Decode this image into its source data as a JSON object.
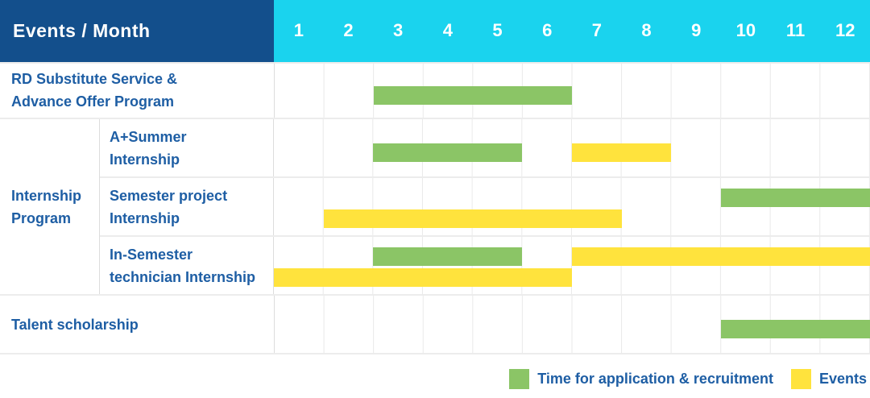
{
  "colors": {
    "header_bg": "#134F8C",
    "months_bg": "#1AD3EE",
    "green": "#8BC566",
    "yellow": "#FFE33D",
    "label_text": "#1E5EA4"
  },
  "header": {
    "title": "Events / Month",
    "months": [
      "1",
      "2",
      "3",
      "4",
      "5",
      "6",
      "7",
      "8",
      "9",
      "10",
      "11",
      "12"
    ]
  },
  "rows": [
    {
      "label": "RD Substitute Service &\nAdvance Offer Program",
      "bars": [
        {
          "color": "green",
          "start": 3,
          "end": 6,
          "lane": "center"
        }
      ]
    },
    {
      "group_label": "Internship\nProgram",
      "subrows": [
        {
          "label": "A+Summer\nInternship",
          "bars": [
            {
              "color": "green",
              "start": 3,
              "end": 5,
              "lane": "center"
            },
            {
              "color": "yellow",
              "start": 7,
              "end": 8,
              "lane": "center"
            }
          ]
        },
        {
          "label": "Semester project\nInternship",
          "bars": [
            {
              "color": "green",
              "start": 10,
              "end": 12,
              "lane": "top"
            },
            {
              "color": "yellow",
              "start": 2,
              "end": 7,
              "lane": "bottom"
            }
          ]
        },
        {
          "label": "In-Semester\ntechnician Internship",
          "bars": [
            {
              "color": "green",
              "start": 3,
              "end": 5,
              "lane": "top"
            },
            {
              "color": "yellow",
              "start": 7,
              "end": 12,
              "lane": "top"
            },
            {
              "color": "yellow",
              "start": 1,
              "end": 6,
              "lane": "bottom"
            }
          ]
        }
      ]
    },
    {
      "label": "Talent scholarship",
      "bars": [
        {
          "color": "green",
          "start": 10,
          "end": 12,
          "lane": "center"
        }
      ]
    }
  ],
  "legend": {
    "items": [
      {
        "color": "green",
        "label": "Time for application & recruitment"
      },
      {
        "color": "yellow",
        "label": "Events"
      }
    ]
  },
  "chart_data": {
    "type": "gantt",
    "title": "Events / Month",
    "x_unit": "month",
    "x_range": [
      1,
      12
    ],
    "legend_position": "bottom-right",
    "grid": true,
    "tasks": [
      {
        "group": null,
        "name": "RD Substitute Service & Advance Offer Program",
        "bars": [
          {
            "kind": "Time for application & recruitment",
            "start_month": 3,
            "end_month": 6
          }
        ]
      },
      {
        "group": "Internship Program",
        "name": "A+Summer Internship",
        "bars": [
          {
            "kind": "Time for application & recruitment",
            "start_month": 3,
            "end_month": 5
          },
          {
            "kind": "Events",
            "start_month": 7,
            "end_month": 8
          }
        ]
      },
      {
        "group": "Internship Program",
        "name": "Semester project Internship",
        "bars": [
          {
            "kind": "Time for application & recruitment",
            "start_month": 10,
            "end_month": 12
          },
          {
            "kind": "Events",
            "start_month": 2,
            "end_month": 7
          }
        ]
      },
      {
        "group": "Internship Program",
        "name": "In-Semester technician Internship",
        "bars": [
          {
            "kind": "Time for application & recruitment",
            "start_month": 3,
            "end_month": 5
          },
          {
            "kind": "Events",
            "start_month": 7,
            "end_month": 12
          },
          {
            "kind": "Events",
            "start_month": 1,
            "end_month": 6
          }
        ]
      },
      {
        "group": null,
        "name": "Talent scholarship",
        "bars": [
          {
            "kind": "Time for application & recruitment",
            "start_month": 10,
            "end_month": 12
          }
        ]
      }
    ]
  }
}
